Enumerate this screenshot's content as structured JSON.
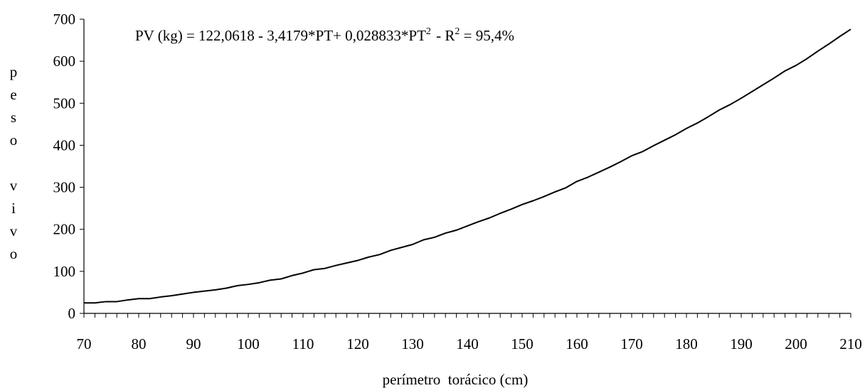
{
  "chart_data": {
    "type": "line",
    "title": "",
    "equation": {
      "lhs": "PV (kg)",
      "eq": " = ",
      "body": "122,0618 - 3,4179*PT+ 0,028833*PT",
      "sup": "2",
      "sep": " - R",
      "r2_sup": "2",
      "r2_value": " = 95,4%"
    },
    "xlabel": "perímetro  torácico (cm)",
    "ylabel": "p e s o  v i v o",
    "ylabel_chars": [
      "p",
      "e",
      "s",
      "o",
      "",
      "v",
      "i",
      "v",
      "o"
    ],
    "xlim": [
      70,
      210
    ],
    "ylim": [
      0,
      700
    ],
    "x_ticks": [
      "70",
      "80",
      "90",
      "100",
      "110",
      "120",
      "130",
      "140",
      "150",
      "160",
      "170",
      "180",
      "190",
      "200",
      "210"
    ],
    "y_ticks": [
      "0",
      "100",
      "200",
      "300",
      "400",
      "500",
      "600",
      "700"
    ],
    "x_minor_step": 2,
    "grid": false,
    "series": [
      {
        "x": [
          70,
          72,
          74,
          76,
          78,
          80,
          82,
          84,
          86,
          88,
          90,
          92,
          94,
          96,
          98,
          100,
          102,
          104,
          106,
          108,
          110,
          112,
          114,
          116,
          118,
          120,
          122,
          124,
          126,
          128,
          130,
          132,
          134,
          136,
          138,
          140,
          142,
          144,
          146,
          148,
          150,
          152,
          154,
          156,
          158,
          160,
          162,
          164,
          166,
          168,
          170,
          172,
          174,
          176,
          178,
          180,
          182,
          184,
          186,
          188,
          190,
          192,
          194,
          196,
          198,
          200,
          202,
          204,
          206,
          208,
          210
        ],
        "values": [
          25,
          25,
          28,
          28,
          32,
          35,
          35,
          39,
          42,
          46,
          50,
          53,
          56,
          60,
          66,
          69,
          73,
          79,
          82,
          90,
          96,
          104,
          107,
          114,
          120,
          126,
          134,
          140,
          150,
          157,
          164,
          175,
          181,
          191,
          198,
          208,
          218,
          227,
          238,
          248,
          259,
          268,
          278,
          289,
          299,
          314,
          324,
          336,
          348,
          361,
          375,
          385,
          399,
          412,
          425,
          440,
          453,
          468,
          484,
          497,
          512,
          528,
          544,
          560,
          577,
          590,
          606,
          624,
          641,
          659,
          676
        ]
      }
    ]
  }
}
